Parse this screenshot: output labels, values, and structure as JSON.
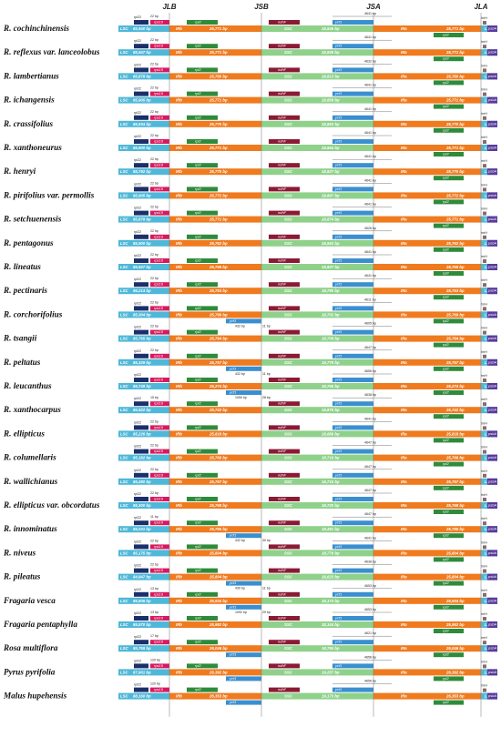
{
  "junction_labels": [
    "JLB",
    "JSB",
    "JSA",
    "JLA"
  ],
  "region_labels": {
    "lsc": "LSC",
    "irb": "IRb",
    "ssc": "SSC",
    "ira": "IRa"
  },
  "colors": {
    "lsc": "#4fb8d8",
    "lsc_dark": "#1e86b0",
    "ir": "#f07a1e",
    "ssc": "#8fd18b",
    "rpl22": "#1b2f6b",
    "rps19": "#d8195e",
    "rpl2": "#2e8b3a",
    "ndhF": "#8b1a35",
    "ycf1": "#3a8fd0",
    "trnH": "#8b6b6b",
    "psbA": "#5a3a9a"
  },
  "species": [
    {
      "name": "R. cochinchinensis",
      "lsc": "85,940 bp",
      "irb": "25,771 bp",
      "ssc": "18,846 bp",
      "ira": "25,771 bp",
      "ycf1_ir": "",
      "ndhF": "",
      "ycf1": "4641 bp",
      "rps19": "22 bp",
      "ycf1_ssc": "",
      "gap_a": "",
      "gap_b": ""
    },
    {
      "name": "R. reflexus var. lanceolobus",
      "lsc": "85,947 bp",
      "irb": "25,771 bp",
      "ssc": "18,849 bp",
      "ira": "25,771 bp",
      "ycf1_ir": "",
      "ndhF": "",
      "ycf1": "4641 bp",
      "rps19": "22 bp",
      "ycf1_ssc": "",
      "gap_a": "",
      "gap_b": ""
    },
    {
      "name": "R. lambertianus",
      "lsc": "85,878 bp",
      "irb": "25,780 bp",
      "ssc": "18,813 bp",
      "ira": "25,780 bp",
      "ycf1_ir": "",
      "ndhF": "",
      "ycf1": "4632 bp",
      "rps19": "22 bp",
      "ycf1_ssc": "",
      "gap_a": "",
      "gap_b": ""
    },
    {
      "name": "R. ichangensis",
      "lsc": "85,905 bp",
      "irb": "25,771 bp",
      "ssc": "18,859 bp",
      "ira": "25,771 bp",
      "ycf1_ir": "",
      "ndhF": "",
      "ycf1": "4641 bp",
      "rps19": "22 bp",
      "ycf1_ssc": "",
      "gap_a": "",
      "gap_b": ""
    },
    {
      "name": "R. crassifolius",
      "lsc": "85,934 bp",
      "irb": "25,770 bp",
      "ssc": "18,853 bp",
      "ira": "25,770 bp",
      "ycf1_ir": "",
      "ndhF": "",
      "ycf1": "4641 bp",
      "rps19": "22 bp",
      "ycf1_ssc": "",
      "gap_a": "",
      "gap_b": ""
    },
    {
      "name": "R. xanthoneurus",
      "lsc": "85,900 bp",
      "irb": "25,771 bp",
      "ssc": "18,854 bp",
      "ira": "25,771 bp",
      "ycf1_ir": "",
      "ndhF": "",
      "ycf1": "4641 bp",
      "rps19": "22 bp",
      "ycf1_ssc": "",
      "gap_a": "",
      "gap_b": ""
    },
    {
      "name": "R. henryi",
      "lsc": "85,792 bp",
      "irb": "25,770 bp",
      "ssc": "18,827 bp",
      "ira": "25,770 bp",
      "ycf1_ir": "",
      "ndhF": "",
      "ycf1": "4641 bp",
      "rps19": "22 bp",
      "ycf1_ssc": "",
      "gap_a": "",
      "gap_b": ""
    },
    {
      "name": "R. pirifolius var. permollis",
      "lsc": "85,905 bp",
      "irb": "25,772 bp",
      "ssc": "18,867 bp",
      "ira": "25,772 bp",
      "ycf1_ir": "",
      "ndhF": "",
      "ycf1": "4641 bp",
      "rps19": "22 bp",
      "ycf1_ssc": "",
      "gap_a": "",
      "gap_b": ""
    },
    {
      "name": "R. setchuenensis",
      "lsc": "85,878 bp",
      "irb": "25,771 bp",
      "ssc": "18,874 bp",
      "ira": "25,771 bp",
      "ycf1_ir": "",
      "ndhF": "",
      "ycf1": "4641 bp",
      "rps19": "22 bp",
      "ycf1_ssc": "",
      "gap_a": "",
      "gap_b": ""
    },
    {
      "name": "R. pentagonus",
      "lsc": "85,900 bp",
      "irb": "25,762 bp",
      "ssc": "18,853 bp",
      "ira": "25,762 bp",
      "ycf1_ir": "",
      "ndhF": "",
      "ycf1": "4626 bp",
      "rps19": "22 bp",
      "ycf1_ssc": "",
      "gap_a": "",
      "gap_b": ""
    },
    {
      "name": "R. lineatus",
      "lsc": "85,927 bp",
      "irb": "25,769 bp",
      "ssc": "18,827 bp",
      "ira": "25,769 bp",
      "ycf1_ir": "",
      "ndhF": "",
      "ycf1": "4641 bp",
      "rps19": "22 bp",
      "ycf1_ssc": "",
      "gap_a": "",
      "gap_b": ""
    },
    {
      "name": "R. pectinaris",
      "lsc": "86,214 bp",
      "irb": "25,753 bp",
      "ssc": "18,790 bp",
      "ira": "25,753 bp",
      "ycf1_ir": "",
      "ndhF": "",
      "ycf1": "4641 bp",
      "rps19": "22 bp",
      "ycf1_ssc": "",
      "gap_a": "",
      "gap_b": ""
    },
    {
      "name": "R. corchorifolius",
      "lsc": "85,304 bp",
      "irb": "25,769 bp",
      "ssc": "18,702 bp",
      "ira": "25,769 bp",
      "ycf1_ir": "ycf1",
      "ndhF": "",
      "ycf1": "4611 bp",
      "rps19": "22 bp",
      "ycf1_ssc": "",
      "gap_a": "432 bp",
      "gap_b": "11 bp"
    },
    {
      "name": "R. tsangii",
      "lsc": "85,765 bp",
      "irb": "25,764 bp",
      "ssc": "18,709 bp",
      "ira": "25,764 bp",
      "ycf1_ir": "",
      "ndhF": "",
      "ycf1": "4605 bp",
      "rps19": "22 bp",
      "ycf1_ssc": "",
      "gap_a": "",
      "gap_b": ""
    },
    {
      "name": "R. peltatus",
      "lsc": "85,329 bp",
      "irb": "25,757 bp",
      "ssc": "18,779 bp",
      "ira": "25,757 bp",
      "ycf1_ir": "ycf1",
      "ndhF": "",
      "ycf1": "4647 bp",
      "rps19": "22 bp",
      "ycf1_ssc": "",
      "gap_a": "432 bp",
      "gap_b": "11 bp"
    },
    {
      "name": "R. leucanthus",
      "lsc": "85,748 bp",
      "irb": "26,274 bp",
      "ssc": "18,765 bp",
      "ira": "26,274 bp",
      "ycf1_ir": "ycf1",
      "ndhF": "",
      "ycf1": "4656 bp",
      "rps19": "",
      "ycf1_ssc": "",
      "gap_a": "1050 bp",
      "gap_b": "28 bp"
    },
    {
      "name": "R. xanthocarpus",
      "lsc": "85,922 bp",
      "irb": "25,742 bp",
      "ssc": "18,875 bp",
      "ira": "25,742 bp",
      "ycf1_ir": "",
      "ndhF": "",
      "ycf1": "4638 bp",
      "rps19": "15 bp",
      "ycf1_ssc": "",
      "gap_a": "",
      "gap_b": ""
    },
    {
      "name": "R. ellipticus",
      "lsc": "85,226 bp",
      "irb": "25,818 bp",
      "ssc": "18,686 bp",
      "ira": "25,818 bp",
      "ycf1_ir": "",
      "ndhF": "",
      "ycf1": "4641 bp",
      "rps19": "22 bp",
      "ycf1_ssc": "",
      "gap_a": "",
      "gap_b": ""
    },
    {
      "name": "R. columellaris",
      "lsc": "85,182 bp",
      "irb": "25,766 bp",
      "ssc": "18,716 bp",
      "ira": "25,766 bp",
      "ycf1_ir": "",
      "ndhF": "",
      "ycf1": "4647 bp",
      "rps19": "22 bp",
      "ycf1_ssc": "",
      "gap_a": "",
      "gap_b": ""
    },
    {
      "name": "R. wallichianus",
      "lsc": "85,280 bp",
      "irb": "25,767 bp",
      "ssc": "18,715 bp",
      "ira": "25,767 bp",
      "ycf1_ir": "",
      "ndhF": "",
      "ycf1": "4647 bp",
      "rps19": "22 bp",
      "ycf1_ssc": "",
      "gap_a": "",
      "gap_b": ""
    },
    {
      "name": "R. ellipticus var. obcordatus",
      "lsc": "85,300 bp",
      "irb": "25,768 bp",
      "ssc": "18,720 bp",
      "ira": "25,768 bp",
      "ycf1_ir": "",
      "ndhF": "",
      "ycf1": "4647 bp",
      "rps19": "22 bp",
      "ycf1_ssc": "",
      "gap_a": "",
      "gap_b": ""
    },
    {
      "name": "R. innominatus",
      "lsc": "85,031 bp",
      "irb": "25,785 bp",
      "ssc": "18,481 bp",
      "ira": "25,785 bp",
      "ycf1_ir": "ycf1",
      "ndhF": "",
      "ycf1": "4647 bp",
      "rps19": "11 bp",
      "ycf1_ssc": "",
      "gap_a": "432 bp",
      "gap_b": "30 bp"
    },
    {
      "name": "R. niveus",
      "lsc": "85,175 bp",
      "irb": "25,804 bp",
      "ssc": "18,779 bp",
      "ira": "25,804 bp",
      "ycf1_ir": "",
      "ndhF": "",
      "ycf1": "4641 bp",
      "rps19": "22 bp",
      "ycf1_ssc": "",
      "gap_a": "",
      "gap_b": ""
    },
    {
      "name": "R. pileatus",
      "lsc": "84,947 bp",
      "irb": "25,804 bp",
      "ssc": "18,623 bp",
      "ira": "25,804 bp",
      "ycf1_ir": "ycf1",
      "ndhF": "",
      "ycf1": "4638 bp",
      "rps19": "22 bp",
      "ycf1_ssc": "",
      "gap_a": "430 bp",
      "gap_b": "11 bp"
    },
    {
      "name": "Fragaria vesca",
      "lsc": "85,606 bp",
      "irb": "25,934 bp",
      "ssc": "18,173 bp",
      "ira": "25,934 bp",
      "ycf1_ir": "ycf1",
      "ndhF": "",
      "ycf1": "4653 bp",
      "rps19": "13 bp",
      "ycf1_ssc": "",
      "gap_a": "1092 bp",
      "gap_b": "29 bp"
    },
    {
      "name": "Fragaria pentaphylla",
      "lsc": "85,570 bp",
      "irb": "25,952 bp",
      "ssc": "18,144 bp",
      "ira": "25,952 bp",
      "ycf1_ir": "",
      "ndhF": "",
      "ycf1": "4653 bp",
      "rps19": "13 bp",
      "ycf1_ssc": "",
      "gap_a": "",
      "gap_b": ""
    },
    {
      "name": "Rosa multiflora",
      "lsc": "85,758 bp",
      "irb": "26,046 bp",
      "ssc": "18,784 bp",
      "ira": "26,046 bp",
      "ycf1_ir": "ycf1",
      "ndhF": "",
      "ycf1": "4621 bp",
      "rps19": "17 bp",
      "ycf1_ssc": "",
      "gap_a": "",
      "gap_b": ""
    },
    {
      "name": "Pyrus pyrifolia",
      "lsc": "87,901 bp",
      "irb": "26,392 bp",
      "ssc": "19,257 bp",
      "ira": "26,392 bp",
      "ycf1_ir": "ycf1",
      "ndhF": "",
      "ycf1": "4656 bp",
      "rps19": "120 bp",
      "ycf1_ssc": "",
      "gap_a": "",
      "gap_b": ""
    },
    {
      "name": "Malus hupehensis",
      "lsc": "88,160 bp",
      "irb": "26,353 bp",
      "ssc": "19,173 bp",
      "ira": "26,353 bp",
      "ycf1_ir": "ycf1",
      "ndhF": "",
      "ycf1": "4656 bp",
      "rps19": "120 bp",
      "ycf1_ssc": "",
      "gap_a": "",
      "gap_b": ""
    }
  ],
  "gene_names": {
    "rpl22": "rpl22",
    "rps19": "rps19",
    "rpl2": "rpl2",
    "ndhF": "ndhF",
    "ycf1": "ycf1",
    "trnH": "trnH",
    "psbA": "psbA"
  }
}
